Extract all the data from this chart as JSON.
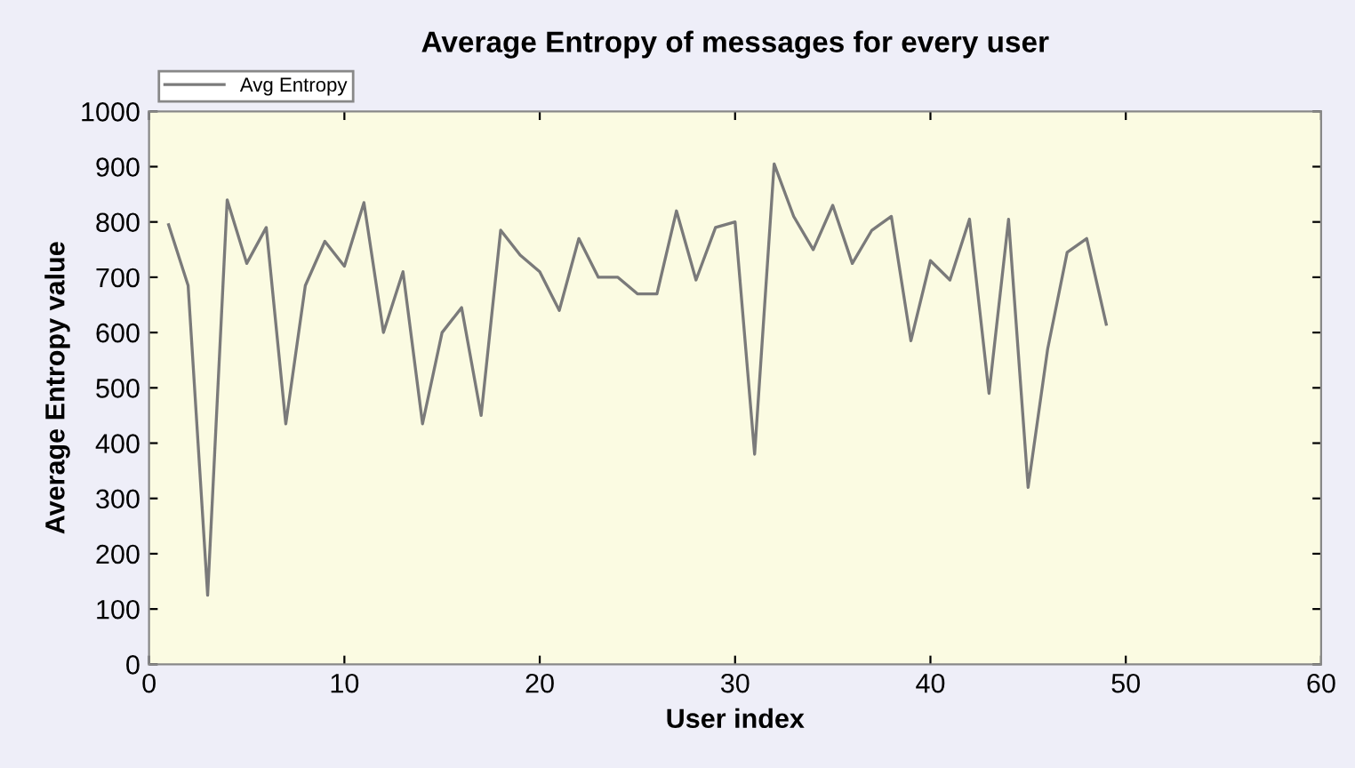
{
  "chart_data": {
    "type": "line",
    "title": "Average Entropy of messages for every user",
    "xlabel": "User index",
    "ylabel": "Average Entropy value",
    "x": [
      1,
      2,
      3,
      4,
      5,
      6,
      7,
      8,
      9,
      10,
      11,
      12,
      13,
      14,
      15,
      16,
      17,
      18,
      19,
      20,
      21,
      22,
      23,
      24,
      25,
      26,
      27,
      28,
      29,
      30,
      31,
      32,
      33,
      34,
      35,
      36,
      37,
      38,
      39,
      40,
      41,
      42,
      43,
      44,
      45,
      46,
      47,
      48,
      49
    ],
    "series": [
      {
        "name": "Avg Entropy",
        "color": "#7a7a7a",
        "values": [
          795,
          685,
          125,
          840,
          725,
          790,
          435,
          685,
          765,
          720,
          835,
          600,
          710,
          435,
          600,
          645,
          450,
          785,
          740,
          710,
          640,
          770,
          700,
          700,
          670,
          670,
          820,
          695,
          790,
          800,
          380,
          905,
          810,
          750,
          830,
          725,
          785,
          810,
          585,
          730,
          695,
          805,
          490,
          805,
          320,
          570,
          745,
          770,
          615
        ]
      }
    ],
    "xlim": [
      0,
      60
    ],
    "xticks": [
      0,
      10,
      20,
      30,
      40,
      50,
      60
    ],
    "ylim": [
      0,
      1000
    ],
    "yticks": [
      0,
      100,
      200,
      300,
      400,
      500,
      600,
      700,
      800,
      900,
      1000
    ],
    "grid": false,
    "legend": "top left",
    "marker": "none",
    "line_style": "solid"
  }
}
